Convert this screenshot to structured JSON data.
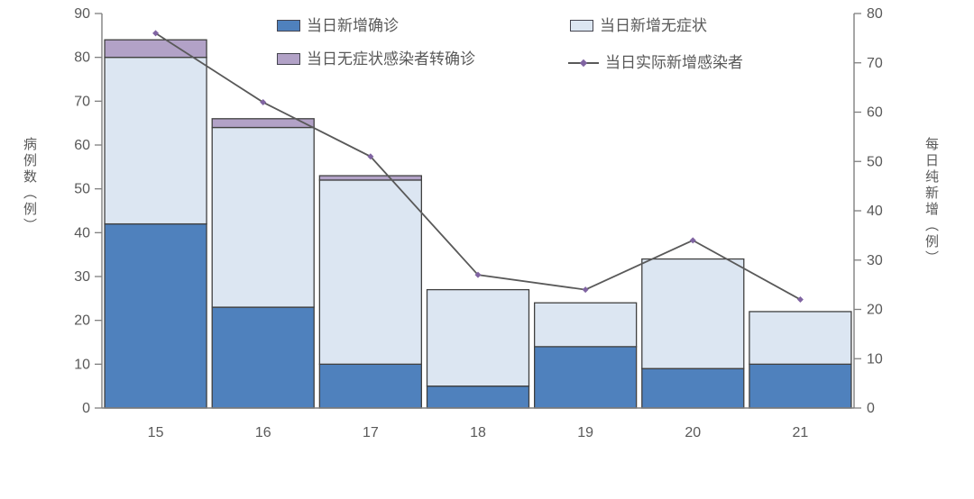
{
  "chart_data": {
    "type": "bar",
    "subtype": "stacked-bar-with-line-dual-axis",
    "categories": [
      "15",
      "16",
      "17",
      "18",
      "19",
      "20",
      "21"
    ],
    "series": [
      {
        "name": "当日新增确诊",
        "type": "bar",
        "stack_values": [
          42,
          23,
          10,
          5,
          14,
          9,
          10
        ],
        "color": "#4F81BD"
      },
      {
        "name": "当日新增无症状",
        "type": "bar",
        "stack_values": [
          38,
          41,
          42,
          22,
          10,
          25,
          12
        ],
        "color": "#DCE6F2"
      },
      {
        "name": "当日无症状感染者转确诊",
        "type": "bar",
        "stack_values": [
          4,
          2,
          1,
          0,
          0,
          0,
          0
        ],
        "color": "#B2A2C7"
      },
      {
        "name": "当日实际新增感染者",
        "type": "line",
        "axis": "right",
        "values": [
          76,
          62,
          51,
          27,
          24,
          34,
          22
        ],
        "color": "#595959",
        "marker_color": "#8064A2"
      }
    ],
    "stack_totals": [
      84,
      66,
      53,
      27,
      24,
      34,
      22
    ],
    "left_axis": {
      "title": "病例数（例）",
      "min": 0,
      "max": 90,
      "step": 10
    },
    "right_axis": {
      "title": "每日纯新增（例）",
      "min": 0,
      "max": 80,
      "step": 10
    },
    "xlabel": "",
    "title": "",
    "legend_position": "top-inside",
    "grid": false,
    "style": {
      "axis_color": "#7f7f7f",
      "tick_text_color": "#595959",
      "bar_border_color": "#404040",
      "background": "#ffffff"
    }
  },
  "legend": {
    "items": [
      {
        "label": "当日新增确诊"
      },
      {
        "label": "当日新增无症状"
      },
      {
        "label": "当日无症状感染者转确诊"
      },
      {
        "label": "当日实际新增感染者"
      }
    ]
  }
}
